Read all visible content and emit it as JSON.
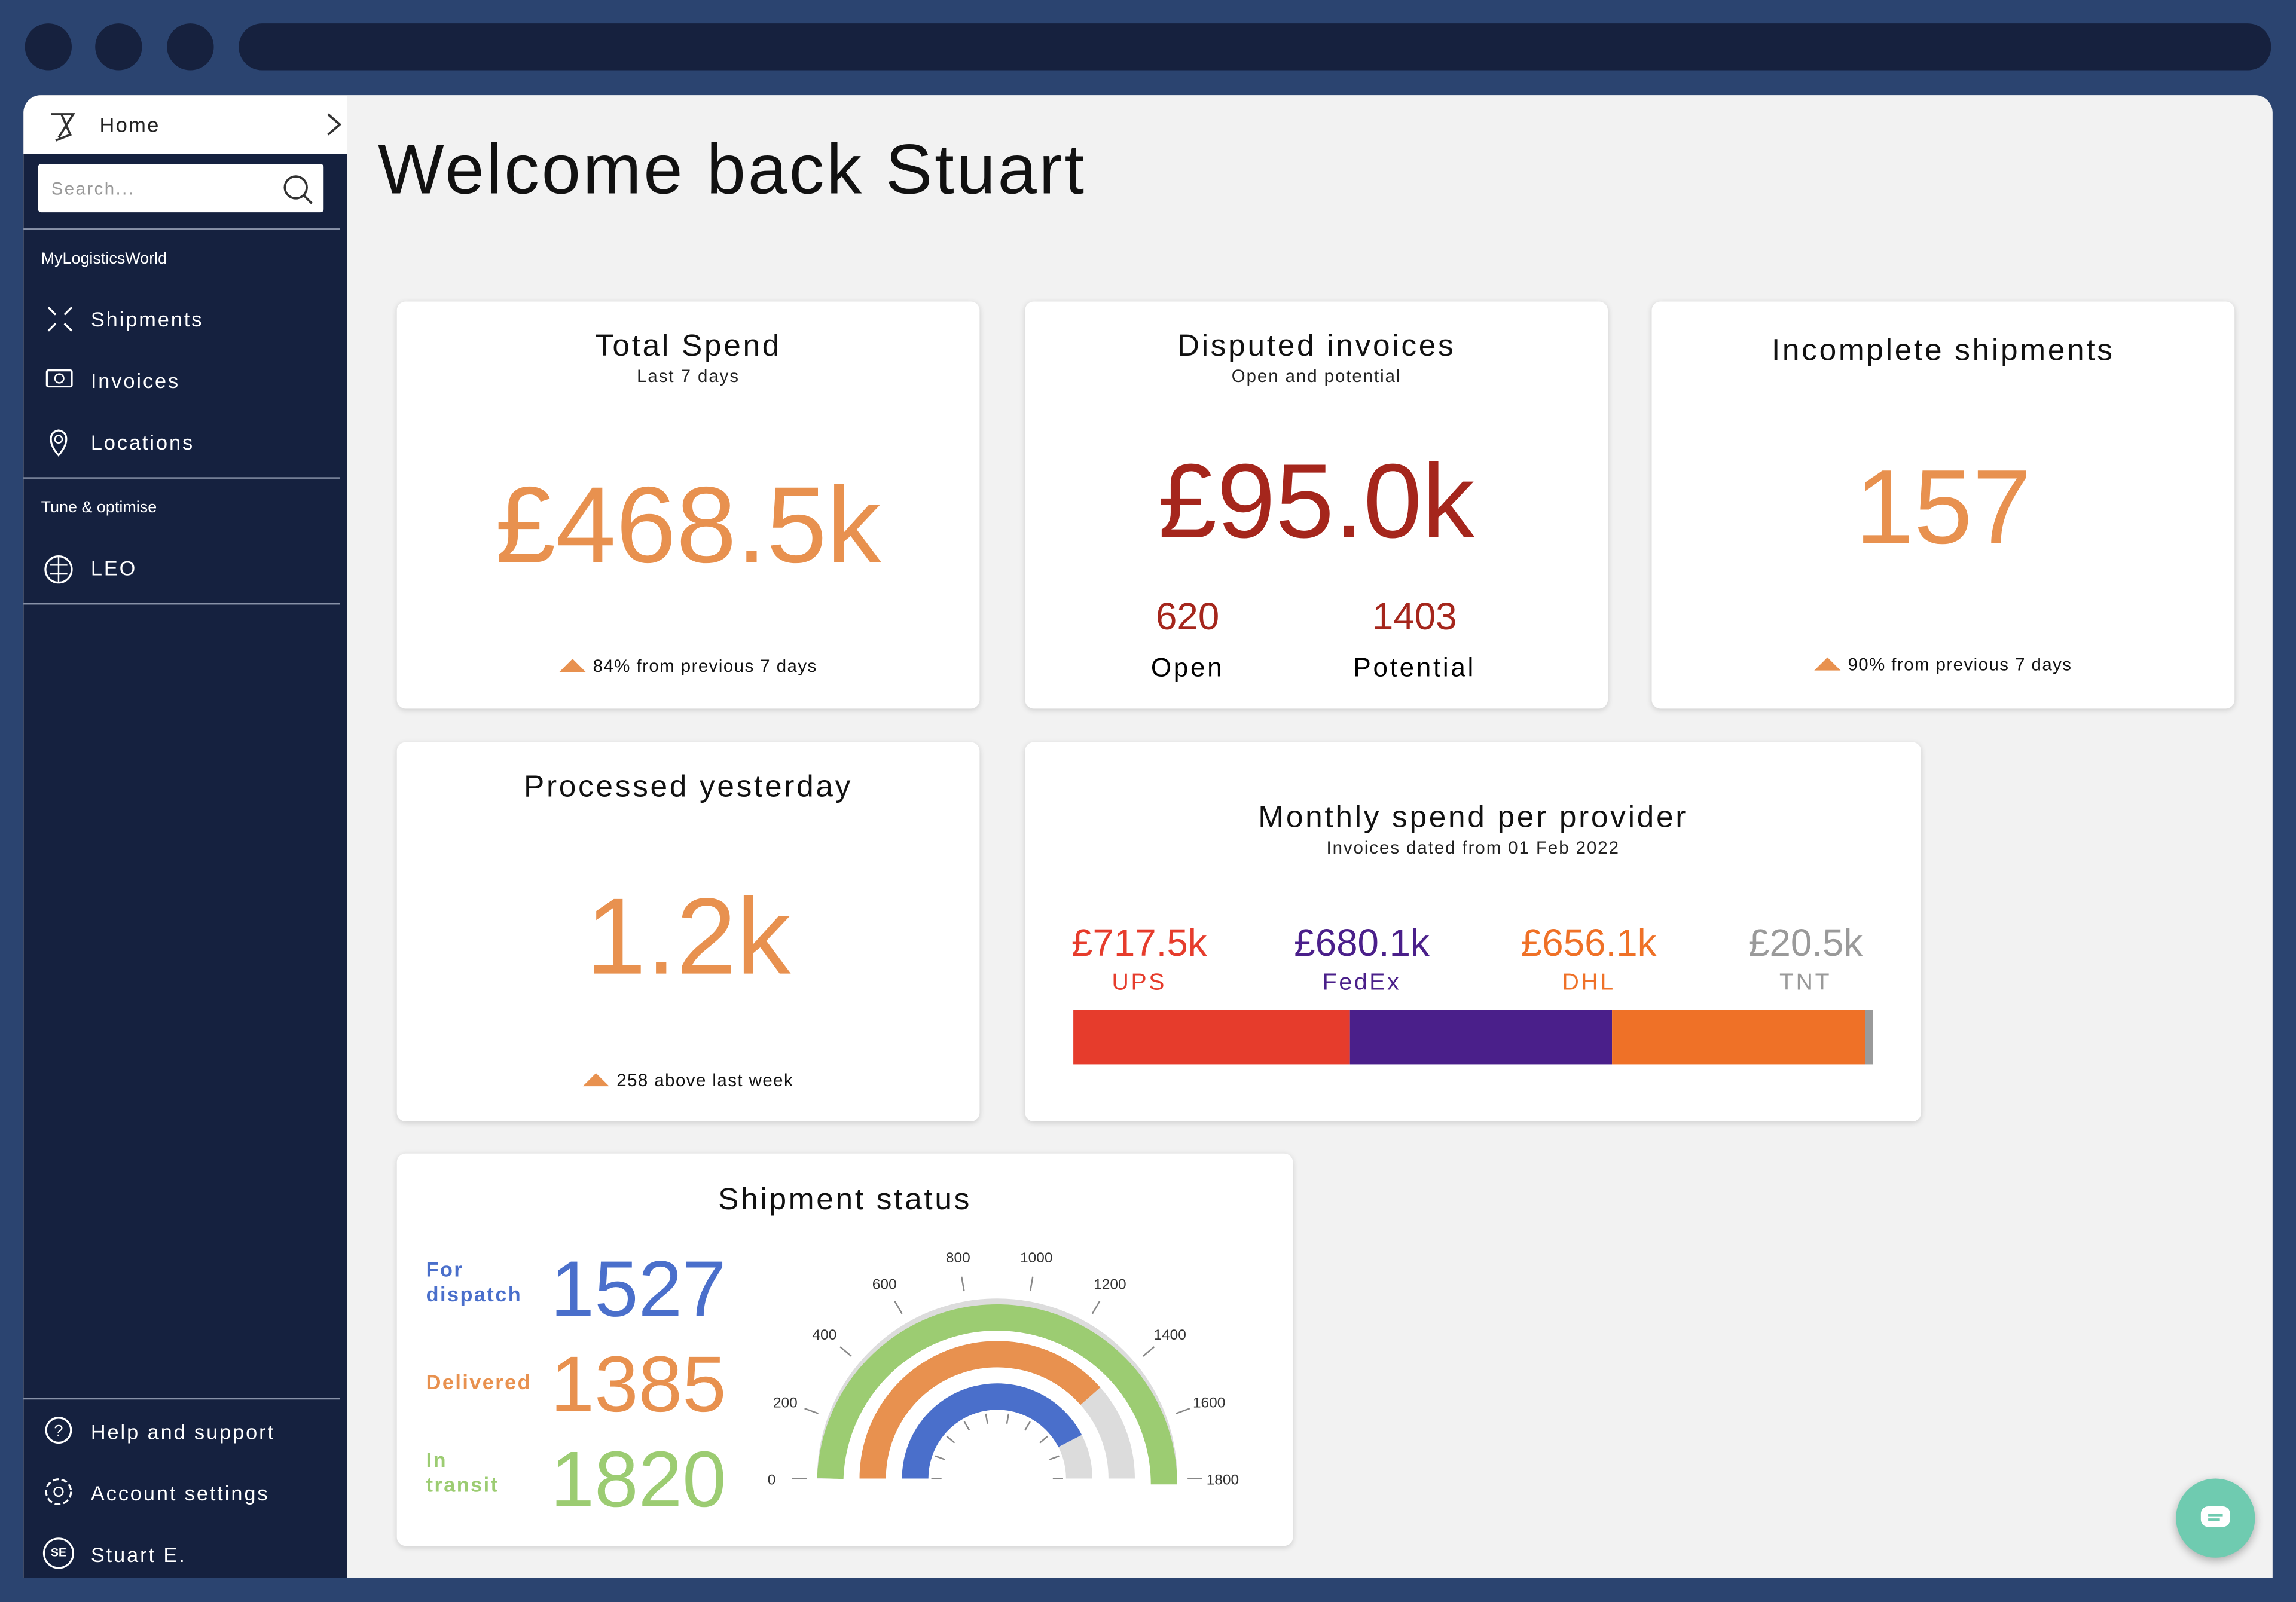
{
  "sidebar": {
    "home": "Home",
    "search_placeholder": "Search...",
    "section_1": "MyLogisticsWorld",
    "nav_1": [
      "Shipments",
      "Invoices",
      "Locations"
    ],
    "section_2": "Tune & optimise",
    "nav_2": [
      "LEO"
    ],
    "footer": [
      "Help and support",
      "Account settings",
      "Stuart E."
    ],
    "avatar": "SE"
  },
  "header": {
    "title": "Welcome back Stuart"
  },
  "cards": {
    "total_spend": {
      "title": "Total Spend",
      "subtitle": "Last 7 days",
      "value": "£468.5k",
      "change": "84% from previous 7 days"
    },
    "disputed": {
      "title": "Disputed invoices",
      "subtitle": "Open and potential",
      "value": "£95.0k",
      "open_value": "620",
      "open_label": "Open",
      "potential_value": "1403",
      "potential_label": "Potential"
    },
    "incomplete": {
      "title": "Incomplete shipments",
      "value": "157",
      "change": "90% from previous 7 days"
    },
    "processed": {
      "title": "Processed yesterday",
      "value": "1.2k",
      "change": "258 above last week"
    }
  },
  "chart_data": [
    {
      "type": "stacked_bar",
      "title": "Monthly spend per provider",
      "subtitle": "Invoices dated from 01 Feb 2022",
      "series": [
        {
          "name": "UPS",
          "color": "#e63c2c",
          "values": [
            717.5
          ],
          "value_labels": [
            "£717.5k"
          ]
        },
        {
          "name": "FedEx",
          "color": "#4a1f8a",
          "values": [
            680.1
          ],
          "value_labels": [
            "£680.1k"
          ]
        },
        {
          "name": "DHL",
          "color": "#ef7127",
          "values": [
            656.1
          ],
          "value_labels": [
            "£656.1k"
          ]
        },
        {
          "name": "TNT",
          "color": "#9a9a9a",
          "values": [
            20.5
          ],
          "value_labels": [
            "£20.5k"
          ]
        }
      ]
    },
    {
      "type": "radial_bar",
      "title": "Shipment status",
      "categories": [
        "For dispatch",
        "Delivered",
        "In transit"
      ],
      "values": [
        1527,
        1385,
        1820
      ],
      "colors": [
        "#4a6fcb",
        "#e8914f",
        "#9ccc72"
      ],
      "track_color": "#dcdcdc",
      "ylim": [
        0,
        1800
      ],
      "yticks": [
        0,
        200,
        400,
        600,
        800,
        1000,
        1200,
        1400,
        1600,
        1800
      ]
    }
  ]
}
